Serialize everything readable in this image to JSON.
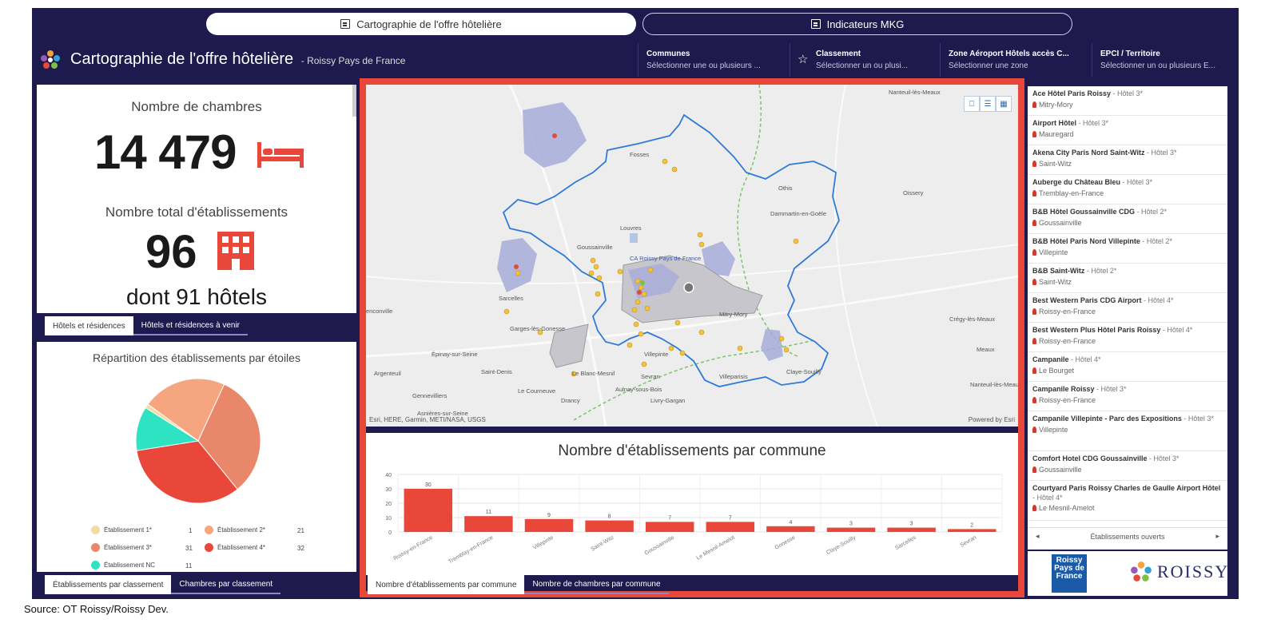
{
  "tabs": {
    "cartographie": "Cartographie de l'offre hôtelière",
    "indicateurs": "Indicateurs MKG"
  },
  "header": {
    "title": "Cartographie de l'offre hôtelière",
    "subtitle": "- Roissy Pays de France"
  },
  "filters": [
    {
      "title": "Communes",
      "placeholder": "Sélectionner une ou plusieurs ..."
    },
    {
      "title": "Classement",
      "placeholder": "Sélectionner un ou plusi..."
    },
    {
      "title": "Zone Aéroport Hôtels accès C...",
      "placeholder": "Sélectionner une zone"
    },
    {
      "title": "EPCI / Territoire",
      "placeholder": "Sélectionner un ou plusieurs E..."
    }
  ],
  "kpi": {
    "rooms_label": "Nombre de chambres",
    "rooms_value": "14 479",
    "estab_label": "Nombre total d'établissements",
    "estab_value": "96",
    "hotels_count": "dont 91 hôtels"
  },
  "subtabs_top": [
    "Hôtels et résidences",
    "Hôtels et résidences à venir"
  ],
  "pie": {
    "title": "Répartition des établissements par étoiles",
    "legend": [
      {
        "label": "Établissement 1*",
        "value": "1",
        "color": "#f7d9a6"
      },
      {
        "label": "Établissement 2*",
        "value": "21",
        "color": "#f5a67f"
      },
      {
        "label": "Établissement 3*",
        "value": "31",
        "color": "#e8876a"
      },
      {
        "label": "Établissement 4*",
        "value": "32",
        "color": "#e8473a"
      },
      {
        "label": "Établissement NC",
        "value": "11",
        "color": "#2de3c2"
      }
    ]
  },
  "subtabs_pie": [
    "Établissements par classement",
    "Chambres par classement"
  ],
  "map": {
    "attribution_left": "Esri, HERE, Garmin, METI/NASA, USGS",
    "attribution_right": "Powered by Esri",
    "places": [
      "Nanteuil-lès-Meaux",
      "Fosses",
      "Othis",
      "Oissery",
      "Louvres",
      "Dammartin-en-Goële",
      "Goussainville",
      "CA Roissy Pays de France",
      "Sarcelles",
      "Mitry-Mory",
      "Garges-lès-Gonesse",
      "Épinay-sur-Seine",
      "Saint-Denis",
      "Le Blanc-Mesnil",
      "Aulnay-sous-Bois",
      "Villepinte",
      "Sevran",
      "Villeparisis",
      "Claye-Souilly",
      "Gennevilliers",
      "Le Courneuve",
      "Drancy",
      "Livry-Gargan",
      "Argenteuil",
      "Asnières-sur-Seine",
      "Crégy-lès-Meaux",
      "Meaux",
      "Nanteuil-lès-Meaux",
      "enconville"
    ]
  },
  "chart_data": {
    "type": "bar",
    "title": "Nombre d'établissements par commune",
    "categories": [
      "Roissy-en-France",
      "Tremblay-en-France",
      "Villepinte",
      "Saint-Witz",
      "Goussainville",
      "Le Mesnil-Amelot",
      "Gonesse",
      "Claye-Souilly",
      "Sarcelles",
      "Sevran"
    ],
    "values": [
      30,
      11,
      9,
      8,
      7,
      7,
      4,
      3,
      3,
      2
    ],
    "ylim": [
      0,
      40
    ],
    "yticks": [
      0,
      10,
      20,
      30,
      40
    ],
    "color": "#e8473a",
    "grid": true
  },
  "subtabs_chart": [
    "Nombre d'établissements par commune",
    "Nombre de chambres par commune"
  ],
  "hotels": [
    {
      "name": "Ace Hôtel Paris Roissy",
      "cls": "- Hôtel 3*",
      "town": "Mitry-Mory"
    },
    {
      "name": "Airport Hôtel",
      "cls": "- Hôtel 3*",
      "town": "Mauregard"
    },
    {
      "name": "Akena City Paris Nord Saint-Witz",
      "cls": "- Hôtel 3*",
      "town": "Saint-Witz"
    },
    {
      "name": "Auberge du Château Bleu",
      "cls": "- Hôtel 3*",
      "town": "Tremblay-en-France"
    },
    {
      "name": "B&B Hôtel Goussainville CDG",
      "cls": "- Hôtel 2*",
      "town": "Goussainville"
    },
    {
      "name": "B&B Hôtel Paris Nord Villepinte",
      "cls": "- Hôtel 2*",
      "town": "Villepinte"
    },
    {
      "name": "B&B Saint-Witz",
      "cls": "- Hôtel 2*",
      "town": "Saint-Witz"
    },
    {
      "name": "Best Western Paris CDG Airport",
      "cls": "- Hôtel 4*",
      "town": "Roissy-en-France"
    },
    {
      "name": "Best Western Plus Hôtel Paris Roissy",
      "cls": "- Hôtel 4*",
      "town": "Roissy-en-France"
    },
    {
      "name": "Campanile",
      "cls": "- Hôtel 4*",
      "town": "Le Bourget"
    },
    {
      "name": "Campanile Roissy",
      "cls": "- Hôtel 3*",
      "town": "Roissy-en-France"
    },
    {
      "name": "Campanile Villepinte - Parc des Expositions",
      "cls": "- Hôtel 3*",
      "town": "Villepinte"
    },
    {
      "name": "Comfort Hotel CDG Goussainville",
      "cls": "- Hôtel 3*",
      "town": "Goussainville"
    },
    {
      "name": "Courtyard Paris Roissy Charles de Gaulle Airport Hôtel",
      "cls": "- Hôtel 4*",
      "town": "Le Mesnil-Amelot"
    }
  ],
  "list_footer": "Établissements ouverts",
  "logos": {
    "rpf": "Roissy Pays de France",
    "roissy": "ROISSY"
  },
  "source": "Source: OT Roissy/Roissy Dev."
}
